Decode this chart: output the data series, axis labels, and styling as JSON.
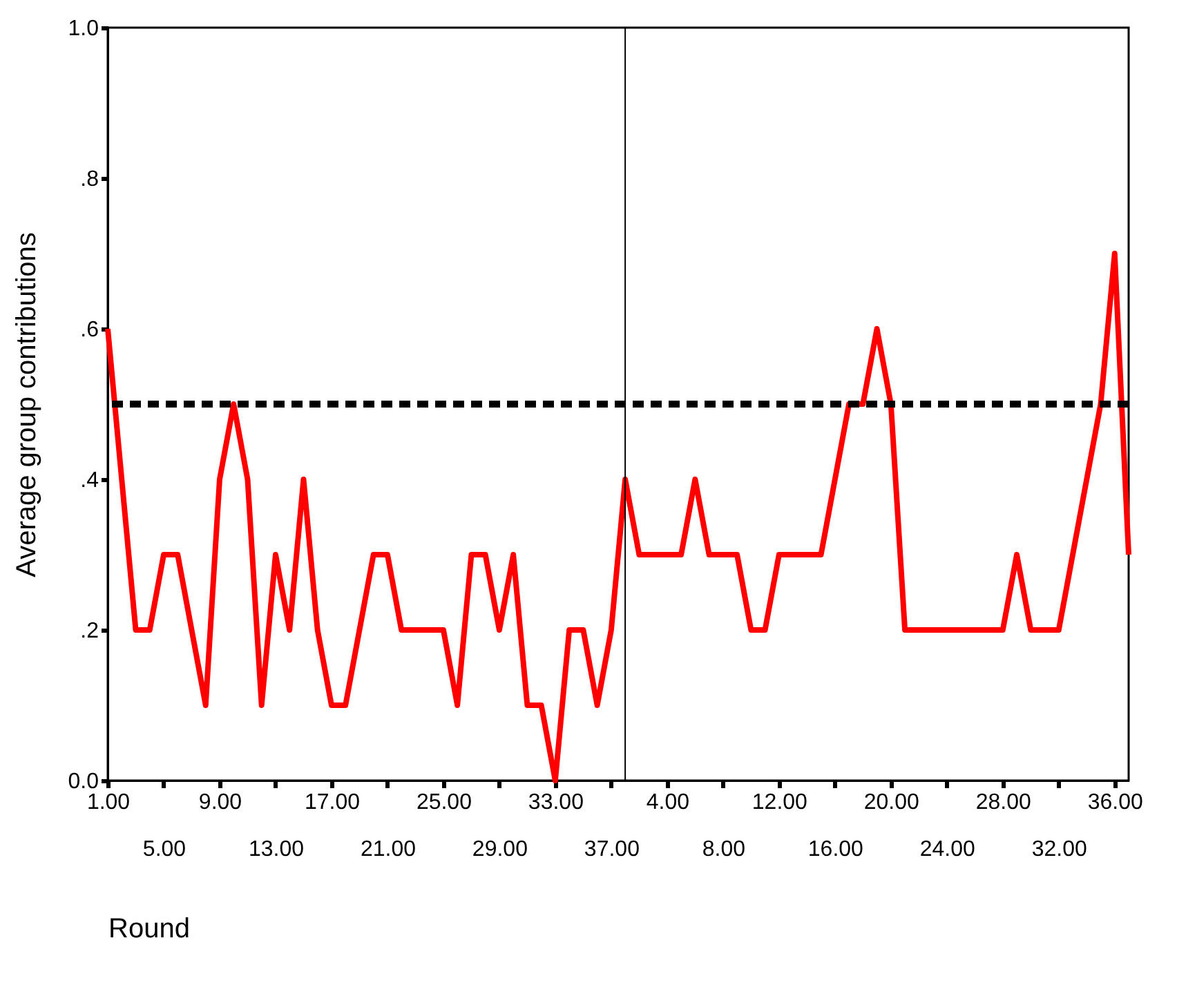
{
  "chart_data": {
    "type": "line",
    "xlabel": "Round",
    "ylabel": "Average group contributions",
    "categories": [
      "1.00",
      null,
      null,
      null,
      "5.00",
      null,
      null,
      null,
      "9.00",
      null,
      null,
      null,
      "13.00",
      null,
      null,
      null,
      "17.00",
      null,
      null,
      null,
      "21.00",
      null,
      null,
      null,
      "25.00",
      null,
      null,
      null,
      "29.00",
      null,
      null,
      null,
      "33.00",
      null,
      null,
      null,
      "37.00",
      null,
      null,
      null,
      "4.00",
      null,
      null,
      null,
      "8.00",
      null,
      null,
      null,
      "12.00",
      null,
      null,
      null,
      "16.00",
      null,
      null,
      null,
      "20.00",
      null,
      null,
      null,
      "24.00",
      null,
      null,
      null,
      "28.00",
      null,
      null,
      null,
      "32.00",
      null,
      null,
      null,
      "36.00",
      null
    ],
    "series": [
      {
        "color": "#ff0000",
        "values": [
          0.6,
          0.4,
          0.2,
          0.2,
          0.3,
          0.3,
          0.2,
          0.1,
          0.4,
          0.5,
          0.4,
          0.1,
          0.3,
          0.2,
          0.4,
          0.2,
          0.1,
          0.1,
          0.2,
          0.3,
          0.3,
          0.2,
          0.2,
          0.2,
          0.2,
          0.1,
          0.3,
          0.3,
          0.2,
          0.3,
          0.1,
          0.1,
          0.0,
          0.2,
          0.2,
          0.1,
          0.2,
          0.4,
          0.3,
          0.3,
          0.3,
          0.3,
          0.4,
          0.3,
          0.3,
          0.3,
          0.2,
          0.2,
          0.3,
          0.3,
          0.3,
          0.3,
          0.4,
          0.5,
          0.5,
          0.6,
          0.5,
          0.2,
          0.2,
          0.2,
          0.2,
          0.2,
          0.2,
          0.2,
          0.2,
          0.3,
          0.2,
          0.2,
          0.2,
          0.3,
          0.4,
          0.5,
          0.7,
          0.3
        ]
      }
    ],
    "ylim": [
      0,
      1
    ],
    "yticks": [
      {
        "value": 0,
        "label": "0.0"
      },
      {
        "value": 0.2,
        "label": ".2"
      },
      {
        "value": 0.4,
        "label": ".4"
      },
      {
        "value": 0.6,
        "label": ".6"
      },
      {
        "value": 0.8,
        "label": ".8"
      },
      {
        "value": 1,
        "label": "1.0"
      }
    ],
    "ref_lines": [
      {
        "axis": "y",
        "value": 0.5,
        "color": "#000000",
        "line_style": "dashed"
      }
    ],
    "grid": false,
    "marker": "none",
    "line_style": "solid"
  }
}
